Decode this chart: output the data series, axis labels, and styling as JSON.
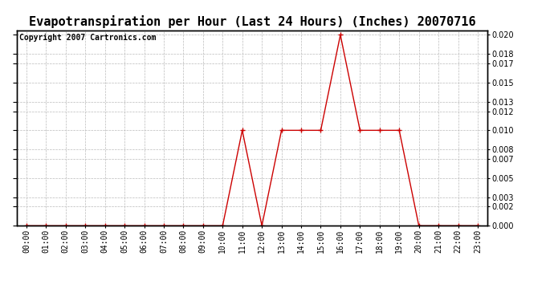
{
  "title": "Evapotranspiration per Hour (Last 24 Hours) (Inches) 20070716",
  "copyright": "Copyright 2007 Cartronics.com",
  "hours": [
    0,
    1,
    2,
    3,
    4,
    5,
    6,
    7,
    8,
    9,
    10,
    11,
    12,
    13,
    14,
    15,
    16,
    17,
    18,
    19,
    20,
    21,
    22,
    23
  ],
  "values": [
    0.0,
    0.0,
    0.0,
    0.0,
    0.0,
    0.0,
    0.0,
    0.0,
    0.0,
    0.0,
    0.0,
    0.01,
    0.0,
    0.01,
    0.01,
    0.01,
    0.02,
    0.01,
    0.01,
    0.01,
    0.0,
    0.0,
    0.0,
    0.0
  ],
  "xlabels": [
    "00:00",
    "01:00",
    "02:00",
    "03:00",
    "04:00",
    "05:00",
    "06:00",
    "07:00",
    "08:00",
    "09:00",
    "10:00",
    "11:00",
    "12:00",
    "13:00",
    "14:00",
    "15:00",
    "16:00",
    "17:00",
    "18:00",
    "19:00",
    "20:00",
    "21:00",
    "22:00",
    "23:00"
  ],
  "ylim": [
    0.0,
    0.0205
  ],
  "yticks": [
    0.0,
    0.002,
    0.003,
    0.005,
    0.007,
    0.008,
    0.01,
    0.012,
    0.013,
    0.015,
    0.017,
    0.018,
    0.02
  ],
  "line_color": "#cc0000",
  "marker_color": "#cc0000",
  "grid_color": "#bbbbbb",
  "bg_color": "#ffffff",
  "title_fontsize": 11,
  "copyright_fontsize": 7,
  "tick_fontsize": 7
}
